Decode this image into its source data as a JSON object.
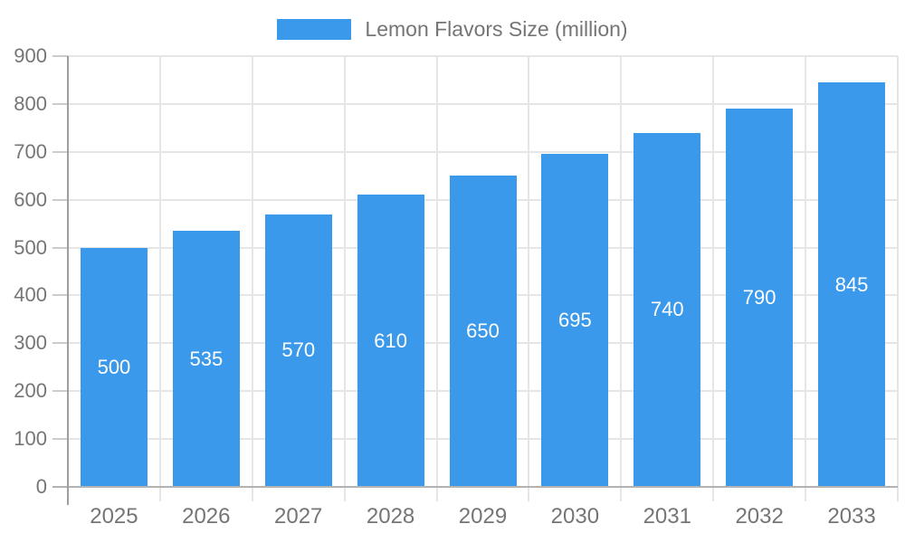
{
  "legend": {
    "label": "Lemon Flavors Size (million)"
  },
  "chart_data": {
    "type": "bar",
    "title": "Lemon Flavors Size (million)",
    "series_name": "Lemon Flavors Size (million)",
    "categories": [
      "2025",
      "2026",
      "2027",
      "2028",
      "2029",
      "2030",
      "2031",
      "2032",
      "2033"
    ],
    "values": [
      500,
      535,
      570,
      610,
      650,
      695,
      740,
      790,
      845
    ],
    "xlabel": "",
    "ylabel": "",
    "ylim": [
      0,
      900
    ],
    "ytick_interval": 100,
    "ytick_labels": [
      "0",
      "100",
      "200",
      "300",
      "400",
      "500",
      "600",
      "700",
      "800",
      "900"
    ],
    "grid": true,
    "legend_position": "top-center",
    "bar_value_labels": "centered-inside-white",
    "colors": {
      "bar": "#3b99ec",
      "bar_label": "#ffffff",
      "axis_text": "#757575",
      "gridline": "#e6e6e6",
      "tick": "#cccccc",
      "baseline": "#b3b3b3",
      "y_axis_line": "#9e9e9e",
      "background": "#ffffff"
    }
  }
}
